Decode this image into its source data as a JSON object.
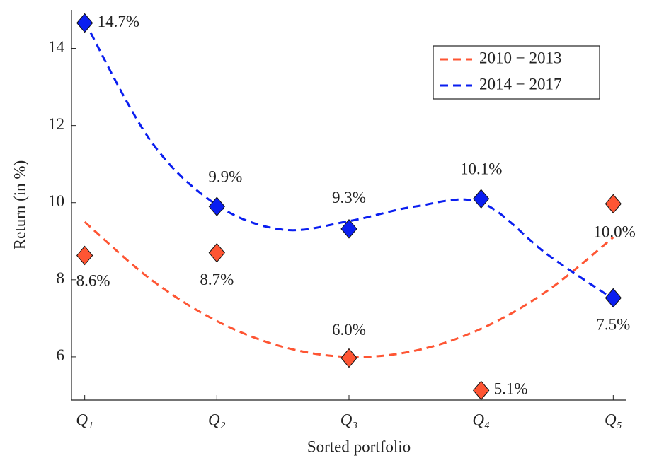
{
  "chart_data": {
    "type": "scatter",
    "x_label": "Sorted portfolio",
    "y_label": "Return (in %)",
    "x": [
      1,
      2,
      3,
      4,
      5
    ],
    "xlim": [
      0.9,
      5.1
    ],
    "xticks": [
      {
        "value": 1,
        "label": "Q₁"
      },
      {
        "value": 2,
        "label": "Q₂"
      },
      {
        "value": 3,
        "label": "Q₃"
      },
      {
        "value": 4,
        "label": "Q₄"
      },
      {
        "value": 5,
        "label": "Q₅"
      }
    ],
    "ylim": [
      4.88,
      15.0
    ],
    "yticks": [
      6,
      8,
      10,
      12,
      14
    ],
    "legend": "upper right",
    "fit_x": [
      1,
      1.5,
      2,
      2.5,
      3,
      3.5,
      4,
      4.5,
      5
    ],
    "series": [
      {
        "name": "2010 − 2013",
        "color": "#fe5533",
        "values": [
          8.63,
          8.7,
          5.97,
          5.13,
          9.97
        ],
        "value_labels": [
          "8.6%",
          "8.7%",
          "6.0%",
          "5.1%",
          "10.0%"
        ],
        "fit": [
          9.5,
          8.01,
          6.93,
          6.26,
          6.0,
          6.16,
          6.73,
          7.71,
          9.1
        ]
      },
      {
        "name": "2014 − 2017",
        "color": "#0a1ef0",
        "values": [
          14.66,
          9.9,
          9.32,
          10.1,
          7.53
        ],
        "value_labels": [
          "14.7%",
          "9.9%",
          "9.3%",
          "10.1%",
          "7.5%"
        ],
        "fit": [
          14.7,
          11.6,
          9.94,
          9.3,
          9.52,
          9.9,
          10.0,
          8.66,
          7.5
        ]
      }
    ]
  }
}
